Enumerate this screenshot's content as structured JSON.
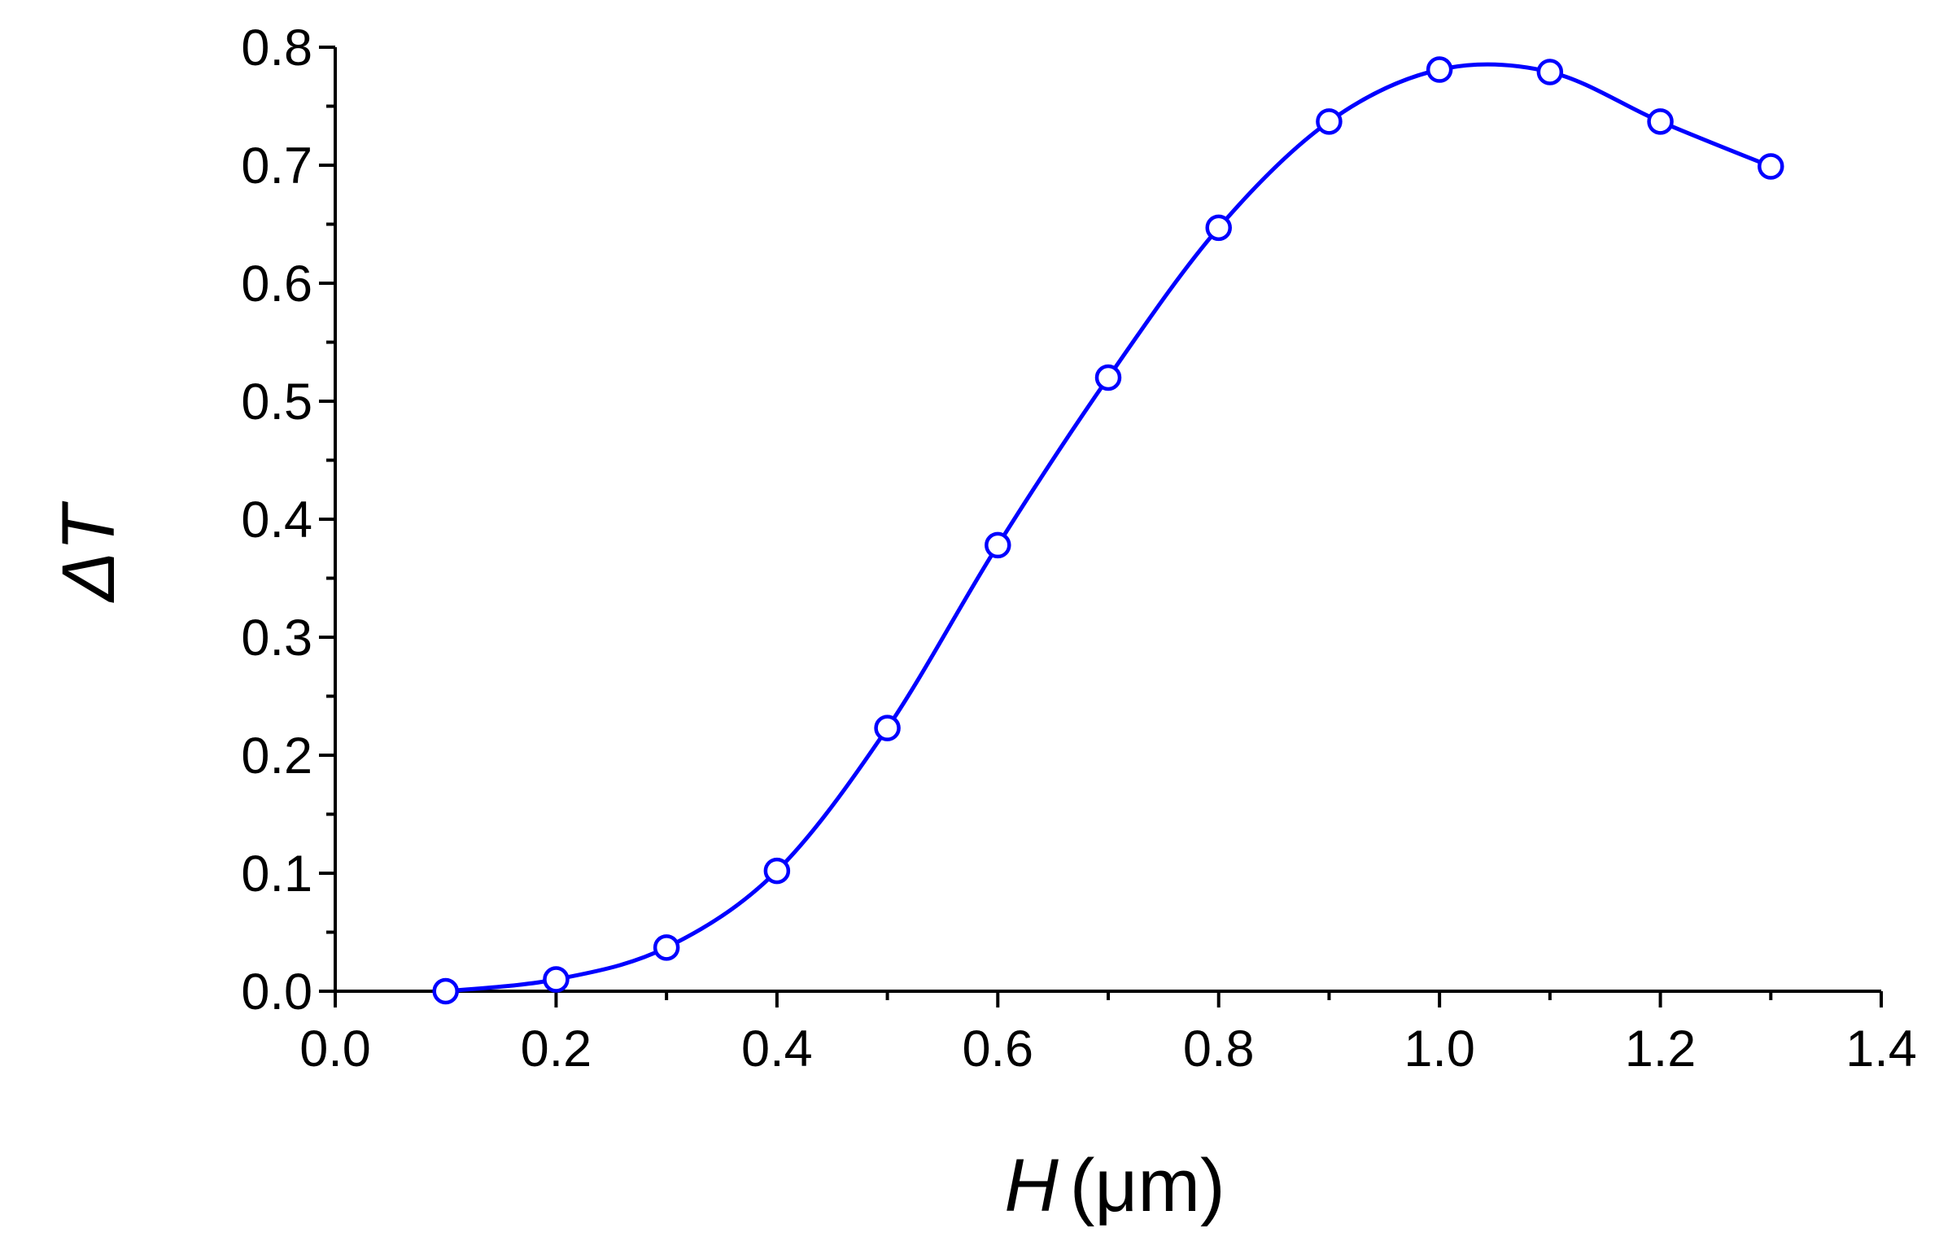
{
  "chart_data": {
    "type": "line",
    "x": [
      0.1,
      0.2,
      0.3,
      0.4,
      0.5,
      0.6,
      0.7,
      0.8,
      0.9,
      1.0,
      1.1,
      1.2,
      1.3
    ],
    "series": [
      {
        "values": [
          0.0,
          0.01,
          0.037,
          0.102,
          0.223,
          0.378,
          0.52,
          0.647,
          0.737,
          0.781,
          0.779,
          0.737,
          0.699
        ]
      }
    ],
    "xlabel": "H",
    "xlabel_unit": "(μm)",
    "ylabel": "ΔT",
    "xlim": [
      0.0,
      1.4
    ],
    "ylim": [
      0.0,
      0.8
    ],
    "x_ticks": [
      "0.0",
      "0.2",
      "0.4",
      "0.6",
      "0.8",
      "1.0",
      "1.2",
      "1.4"
    ],
    "y_ticks": [
      "0.0",
      "0.1",
      "0.2",
      "0.3",
      "0.4",
      "0.5",
      "0.6",
      "0.7",
      "0.8"
    ],
    "markers": "open-circle",
    "line_style": "smooth",
    "grid": false,
    "legend": "none",
    "colors": {
      "series": "#0000ff",
      "axis": "#000000"
    }
  }
}
